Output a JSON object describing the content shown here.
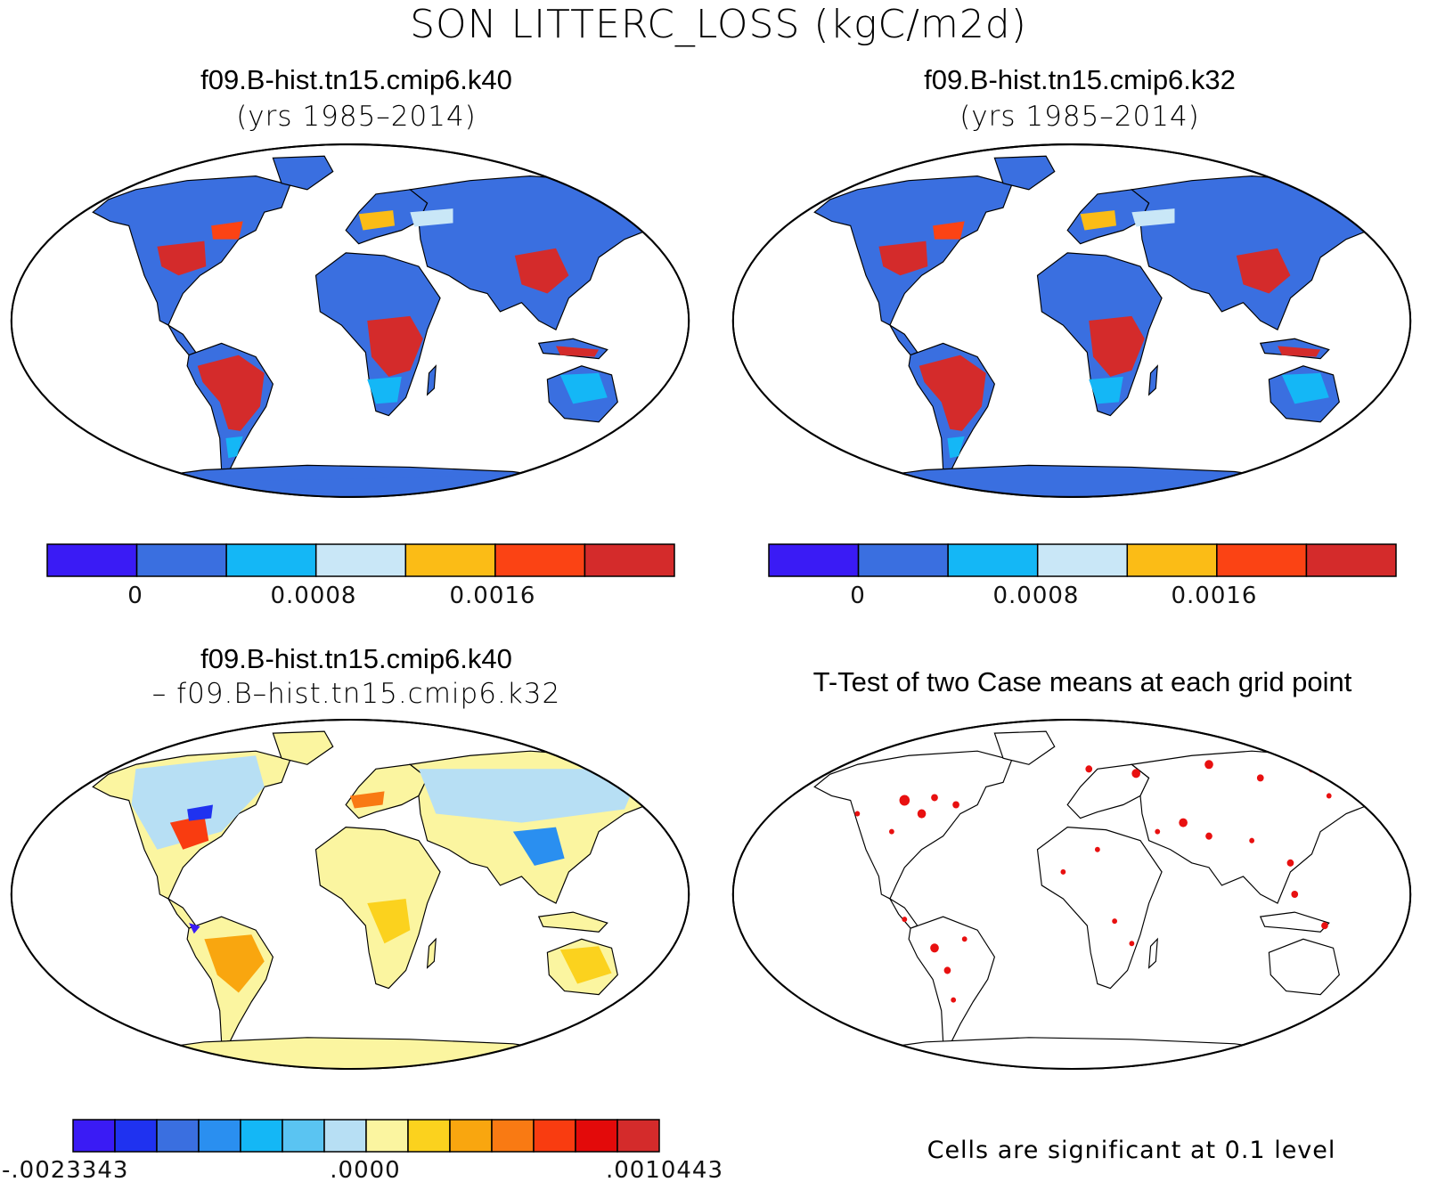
{
  "page": {
    "title": "SON LITTERC_LOSS (kgC/m2d)"
  },
  "panels": {
    "top_left": {
      "case": "f09.B-hist.tn15.cmip6.k40",
      "years": "(yrs 1985–2014)"
    },
    "top_right": {
      "case": "f09.B-hist.tn15.cmip6.k32",
      "years": "(yrs 1985–2014)"
    },
    "bottom_left": {
      "case_a": "f09.B-hist.tn15.cmip6.k40",
      "case_b": "– f09.B–hist.tn15.cmip6.k32"
    },
    "bottom_right": {
      "title": "T-Test of two Case means at each grid point",
      "note": "Cells are significant at 0.1 level"
    }
  },
  "colorbar_abs": {
    "colors": [
      "#3a1bf5",
      "#3a6fe0",
      "#14b7f6",
      "#c9e7f7",
      "#fbbc16",
      "#fb4314",
      "#d42b2b"
    ],
    "labels": [
      "0",
      "0.0008",
      "0.0016"
    ]
  },
  "colorbar_diff": {
    "colors": [
      "#3a1bf5",
      "#1f32f0",
      "#3a6fe0",
      "#2a8ff0",
      "#14b7f6",
      "#5ac4f2",
      "#b7dff4",
      "#fbf5a0",
      "#fbd21e",
      "#f9a60f",
      "#f97a13",
      "#f93c10",
      "#e30a0a",
      "#d42b2b"
    ],
    "labels": [
      "-.0023343",
      ".0000",
      ".0010443"
    ]
  },
  "colors": {
    "land_abs_base": "#3a6fe0",
    "land_diff_base": "#fbf5a0",
    "significant": "#e81010",
    "map_outline": "#000000"
  }
}
